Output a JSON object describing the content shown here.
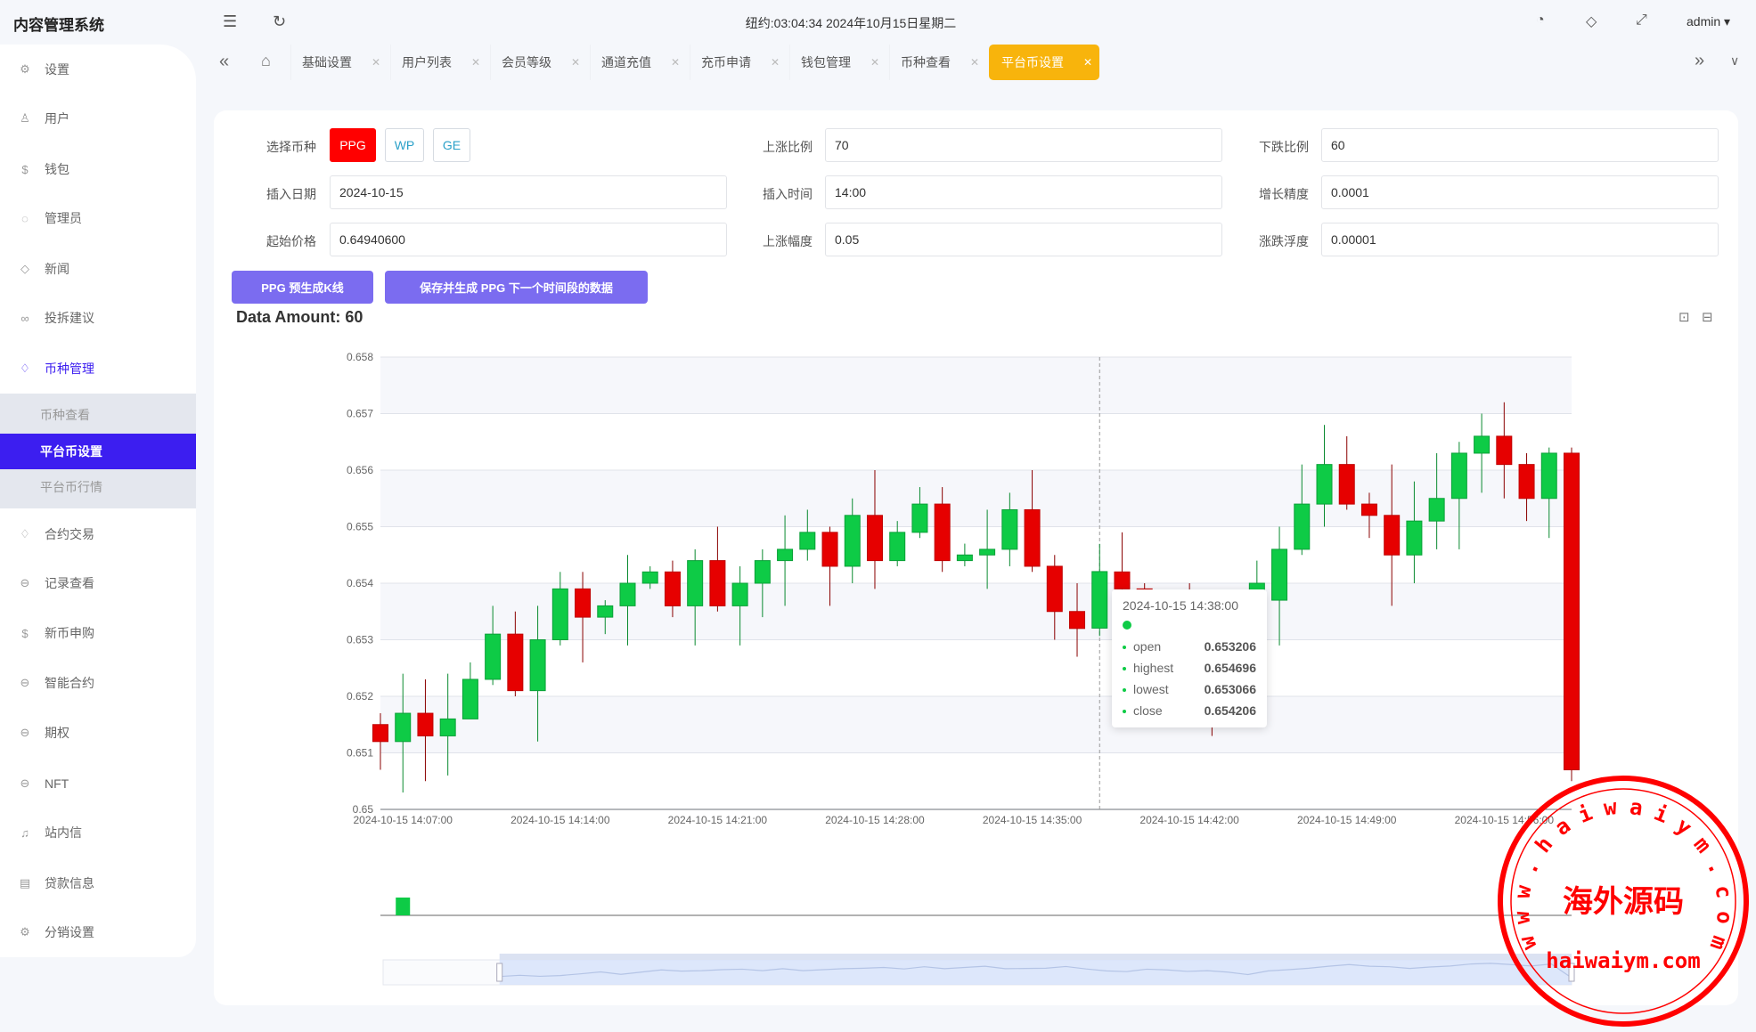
{
  "header": {
    "title": "内容管理系统",
    "clock": "纽约:03:04:34 2024年10月15日星期二",
    "user": "admin ▾",
    "icons": [
      "menu-fold-icon",
      "refresh-icon",
      "dashboard-icon",
      "tag-icon",
      "fullscreen-icon"
    ]
  },
  "sidebar": {
    "items": [
      {
        "label": "设置",
        "icon": "⚙"
      },
      {
        "label": "用户",
        "icon": "♙"
      },
      {
        "label": "钱包",
        "icon": "$"
      },
      {
        "label": "管理员",
        "icon": "◌"
      },
      {
        "label": "新闻",
        "icon": "◇"
      },
      {
        "label": "投拆建议",
        "icon": "∞"
      },
      {
        "label": "币种管理",
        "icon": "♢",
        "open": true
      },
      {
        "label": "合约交易",
        "icon": "♢"
      },
      {
        "label": "记录查看",
        "icon": "⊖"
      },
      {
        "label": "新币申购",
        "icon": "$"
      },
      {
        "label": "智能合约",
        "icon": "⊖"
      },
      {
        "label": "期权",
        "icon": "⊖"
      },
      {
        "label": "NFT",
        "icon": "⊖"
      },
      {
        "label": "站内信",
        "icon": "♫"
      },
      {
        "label": "贷款信息",
        "icon": "▤"
      },
      {
        "label": "分销设置",
        "icon": "⚙"
      }
    ],
    "submenu": [
      {
        "label": "币种查看"
      },
      {
        "label": "平台币设置",
        "active": true
      },
      {
        "label": "平台币行情"
      }
    ]
  },
  "tabs": [
    {
      "label": "基础设置"
    },
    {
      "label": "用户列表"
    },
    {
      "label": "会员等级"
    },
    {
      "label": "通道充值"
    },
    {
      "label": "充币申请"
    },
    {
      "label": "钱包管理"
    },
    {
      "label": "币种查看"
    },
    {
      "label": "平台币设置",
      "active": true
    }
  ],
  "form": {
    "coin_label": "选择币种",
    "coins": [
      "PPG",
      "WP",
      "GE"
    ],
    "selected_coin": "PPG",
    "fields": [
      {
        "label": "上涨比例",
        "value": "70"
      },
      {
        "label": "下跌比例",
        "value": "60"
      },
      {
        "label": "插入日期",
        "value": "2024-10-15"
      },
      {
        "label": "插入时间",
        "value": "14:00"
      },
      {
        "label": "增长精度",
        "value": "0.0001"
      },
      {
        "label": "起始价格",
        "value": "0.64940600"
      },
      {
        "label": "上涨幅度",
        "value": "0.05"
      },
      {
        "label": "涨跌浮度",
        "value": "0.00001"
      }
    ]
  },
  "buttons": {
    "preview": "PPG 预生成K线",
    "save": "保存并生成 PPG 下一个时间段的数据"
  },
  "data_amount": "Data Amount: 60",
  "colors": {
    "up": "#0ecb46",
    "down": "#e60000",
    "accent": "#3c1ef0",
    "button": "#7b6cf0",
    "active_tab": "#f8b40c"
  },
  "tooltip": {
    "time": "2024-10-15 14:38:00",
    "rows": [
      {
        "k": "open",
        "v": "0.653206"
      },
      {
        "k": "highest",
        "v": "0.654696"
      },
      {
        "k": "lowest",
        "v": "0.653066"
      },
      {
        "k": "close",
        "v": "0.654206"
      }
    ]
  },
  "watermark": {
    "text_cn": "海外源码",
    "text_en": "haiwaiym.com",
    "ring": "www.haiwaiym.com"
  },
  "chart_data": {
    "type": "candlestick",
    "ylim": [
      0.65,
      0.658
    ],
    "yticks": [
      "0.65",
      "0.651",
      "0.652",
      "0.653",
      "0.654",
      "0.655",
      "0.656",
      "0.657",
      "0.658"
    ],
    "xticks": [
      "2024-10-15 14:07:00",
      "2024-10-15 14:14:00",
      "2024-10-15 14:21:00",
      "2024-10-15 14:28:00",
      "2024-10-15 14:35:00",
      "2024-10-15 14:42:00",
      "2024-10-15 14:49:00",
      "2024-10-15 14:56:00"
    ],
    "grid": true,
    "datazoom": {
      "start_percent": 10,
      "end_percent": 100
    },
    "start_time": "14:06",
    "candles": [
      [
        0.6515,
        0.6512,
        0.6517,
        0.6507
      ],
      [
        0.6512,
        0.6517,
        0.6524,
        0.6503
      ],
      [
        0.6517,
        0.6513,
        0.6523,
        0.6505
      ],
      [
        0.6513,
        0.6516,
        0.6524,
        0.6506
      ],
      [
        0.6516,
        0.6523,
        0.6526,
        0.6516
      ],
      [
        0.6523,
        0.6531,
        0.6536,
        0.6522
      ],
      [
        0.6531,
        0.6521,
        0.6535,
        0.652
      ],
      [
        0.6521,
        0.653,
        0.6536,
        0.6512
      ],
      [
        0.653,
        0.6539,
        0.6542,
        0.6529
      ],
      [
        0.6539,
        0.6534,
        0.6542,
        0.6526
      ],
      [
        0.6534,
        0.6536,
        0.6537,
        0.6531
      ],
      [
        0.6536,
        0.654,
        0.6545,
        0.6529
      ],
      [
        0.654,
        0.6542,
        0.6543,
        0.6539
      ],
      [
        0.6542,
        0.6536,
        0.6544,
        0.6534
      ],
      [
        0.6536,
        0.6544,
        0.6546,
        0.6529
      ],
      [
        0.6544,
        0.6536,
        0.655,
        0.6535
      ],
      [
        0.6536,
        0.654,
        0.6543,
        0.6529
      ],
      [
        0.654,
        0.6544,
        0.6546,
        0.6534
      ],
      [
        0.6544,
        0.6546,
        0.6552,
        0.6536
      ],
      [
        0.6546,
        0.6549,
        0.6553,
        0.6544
      ],
      [
        0.6549,
        0.6543,
        0.655,
        0.6536
      ],
      [
        0.6543,
        0.6552,
        0.6555,
        0.654
      ],
      [
        0.6552,
        0.6544,
        0.656,
        0.6539
      ],
      [
        0.6544,
        0.6549,
        0.6551,
        0.6543
      ],
      [
        0.6549,
        0.6554,
        0.6557,
        0.6548
      ],
      [
        0.6554,
        0.6544,
        0.6557,
        0.6542
      ],
      [
        0.6544,
        0.6545,
        0.6547,
        0.6543
      ],
      [
        0.6545,
        0.6546,
        0.6553,
        0.6539
      ],
      [
        0.6546,
        0.6553,
        0.6556,
        0.6543
      ],
      [
        0.6553,
        0.6543,
        0.656,
        0.6542
      ],
      [
        0.6543,
        0.6535,
        0.6545,
        0.653
      ],
      [
        0.6535,
        0.6532,
        0.654,
        0.6527
      ],
      [
        0.653206,
        0.654206,
        0.654696,
        0.653066
      ],
      [
        0.6542,
        0.6539,
        0.6549,
        0.6537
      ],
      [
        0.6539,
        0.6533,
        0.654,
        0.653
      ],
      [
        0.6533,
        0.6536,
        0.6538,
        0.6528
      ],
      [
        0.6536,
        0.653,
        0.654,
        0.6525
      ],
      [
        0.653,
        0.652,
        0.6534,
        0.6513
      ],
      [
        0.652,
        0.6535,
        0.6538,
        0.6518
      ],
      [
        0.6535,
        0.654,
        0.6544,
        0.6532
      ],
      [
        0.6537,
        0.6546,
        0.655,
        0.6529
      ],
      [
        0.6546,
        0.6554,
        0.6561,
        0.6545
      ],
      [
        0.6554,
        0.6561,
        0.6568,
        0.655
      ],
      [
        0.6561,
        0.6554,
        0.6566,
        0.6553
      ],
      [
        0.6554,
        0.6552,
        0.6556,
        0.6548
      ],
      [
        0.6552,
        0.6545,
        0.6561,
        0.6536
      ],
      [
        0.6545,
        0.6551,
        0.6558,
        0.654
      ],
      [
        0.6551,
        0.6555,
        0.6563,
        0.6546
      ],
      [
        0.6555,
        0.6563,
        0.6565,
        0.6546
      ],
      [
        0.6563,
        0.6566,
        0.657,
        0.6556
      ],
      [
        0.6566,
        0.6561,
        0.6572,
        0.6555
      ],
      [
        0.6561,
        0.6555,
        0.6563,
        0.6551
      ],
      [
        0.6555,
        0.6563,
        0.6564,
        0.6548
      ],
      [
        0.6563,
        0.6507,
        0.6564,
        0.6505
      ]
    ],
    "candle_fields": [
      "open",
      "close",
      "highest",
      "lowest"
    ]
  }
}
